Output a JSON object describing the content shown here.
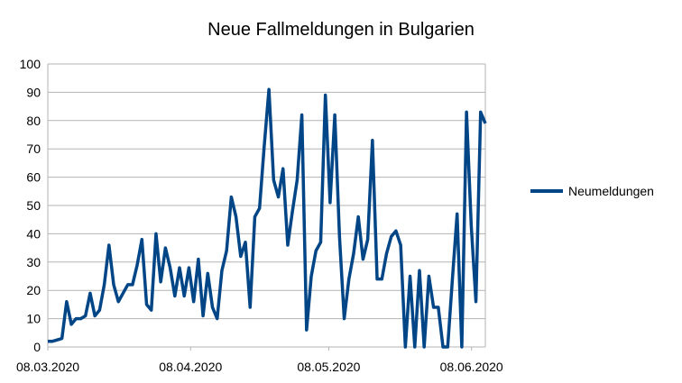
{
  "chart_data": {
    "type": "line",
    "title": "Neue Fallmeldungen in Bulgarien",
    "xlabel": "",
    "ylabel": "",
    "ylim": [
      0,
      100
    ],
    "yticks": [
      0,
      10,
      20,
      30,
      40,
      50,
      60,
      70,
      80,
      90,
      100
    ],
    "xticks": [
      "08.03.2020",
      "08.04.2020",
      "08.05.2020",
      "08.06.2020"
    ],
    "x_start": "08.03.2020",
    "x_end": "11.06.2020",
    "grid": "horizontal",
    "legend": "right",
    "series": [
      {
        "name": "Neumeldungen",
        "color": "#004586",
        "values": [
          2,
          2,
          2.5,
          3,
          16,
          8,
          10,
          10,
          11,
          19,
          11,
          13,
          22,
          36,
          22,
          16,
          19,
          22,
          22,
          29,
          38,
          15,
          13,
          40,
          23,
          35,
          28,
          18,
          28,
          18,
          28,
          16,
          31,
          11,
          26,
          14,
          10,
          27,
          34,
          53,
          46,
          32,
          37,
          14,
          46,
          49,
          71,
          91,
          59,
          53,
          63,
          36,
          48,
          59,
          82,
          6,
          25,
          34,
          37,
          89,
          51,
          82,
          39,
          10,
          24,
          33,
          46,
          31,
          38,
          73,
          24,
          24,
          33,
          39,
          41,
          36,
          0,
          25,
          0,
          27,
          0,
          25,
          14,
          14,
          0,
          0,
          24,
          47,
          0,
          83,
          43,
          16,
          83,
          79
        ]
      }
    ]
  }
}
